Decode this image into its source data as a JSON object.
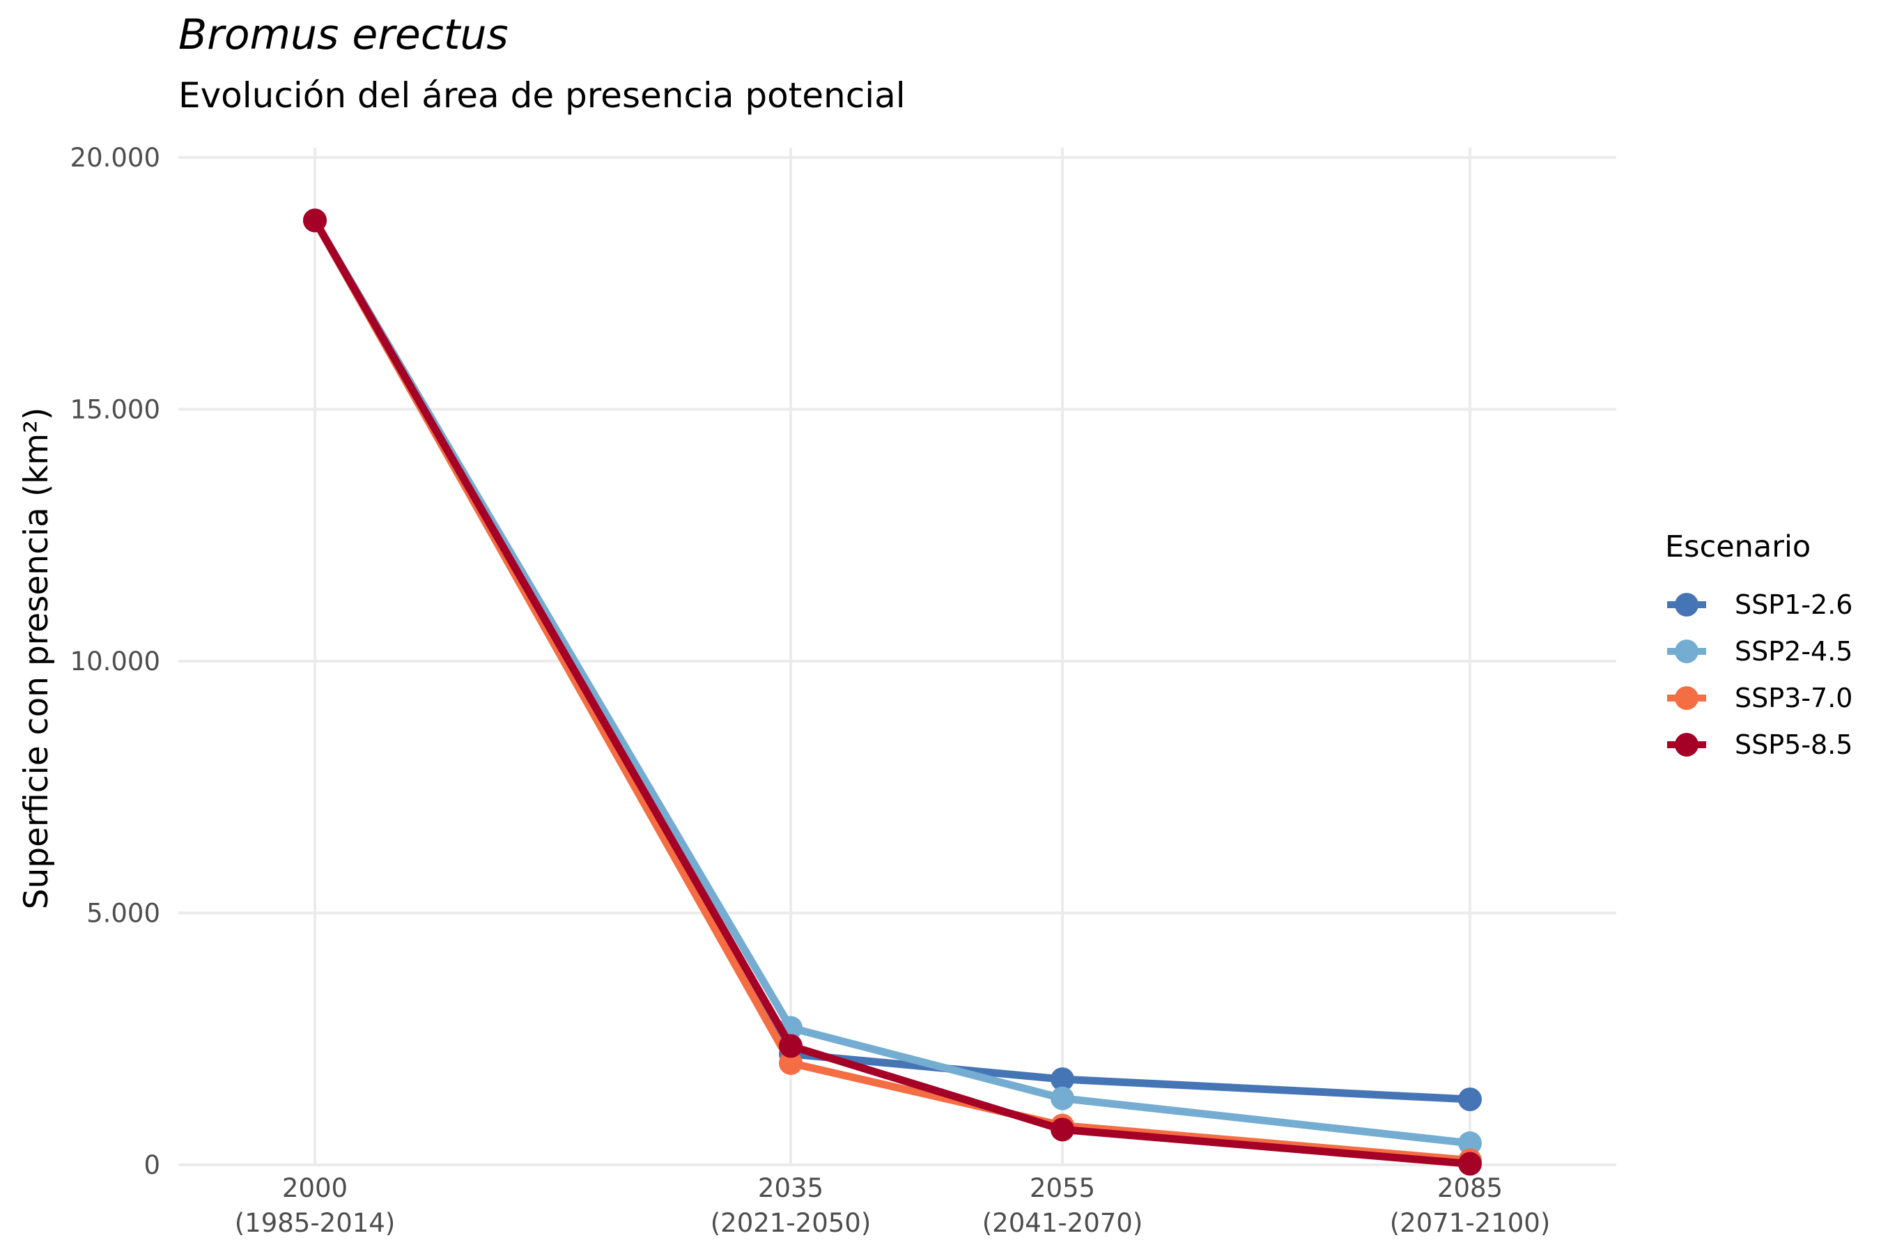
{
  "chart_data": {
    "type": "line",
    "title": "Bromus erectus",
    "subtitle": "Evolución del área de presencia potencial",
    "xlabel": "",
    "ylabel": "Superficie con presencia (km²)",
    "x": [
      2000,
      2035,
      2055,
      2085
    ],
    "x_tick_labels": [
      [
        "2000",
        "(1985-2014)"
      ],
      [
        "2035",
        "(2021-2050)"
      ],
      [
        "2055",
        "(2041-2070)"
      ],
      [
        "2085",
        "(2071-2100)"
      ]
    ],
    "y_ticks": [
      0,
      5000,
      10000,
      15000,
      20000
    ],
    "y_tick_labels": [
      "0",
      "5.000",
      "10.000",
      "15.000",
      "20.000"
    ],
    "ylim": [
      0,
      20000
    ],
    "grid": true,
    "legend": {
      "title": "Escenario",
      "position": "right"
    },
    "series": [
      {
        "name": "SSP1-2.6",
        "color": "#4575b4",
        "values": [
          18750,
          2200,
          1700,
          1300
        ]
      },
      {
        "name": "SSP2-4.5",
        "color": "#74add1",
        "values": [
          18750,
          2720,
          1320,
          430
        ]
      },
      {
        "name": "SSP3-7.0",
        "color": "#f46d43",
        "values": [
          18750,
          2020,
          780,
          90
        ]
      },
      {
        "name": "SSP5-8.5",
        "color": "#a50026",
        "values": [
          18750,
          2360,
          700,
          20
        ]
      }
    ]
  }
}
